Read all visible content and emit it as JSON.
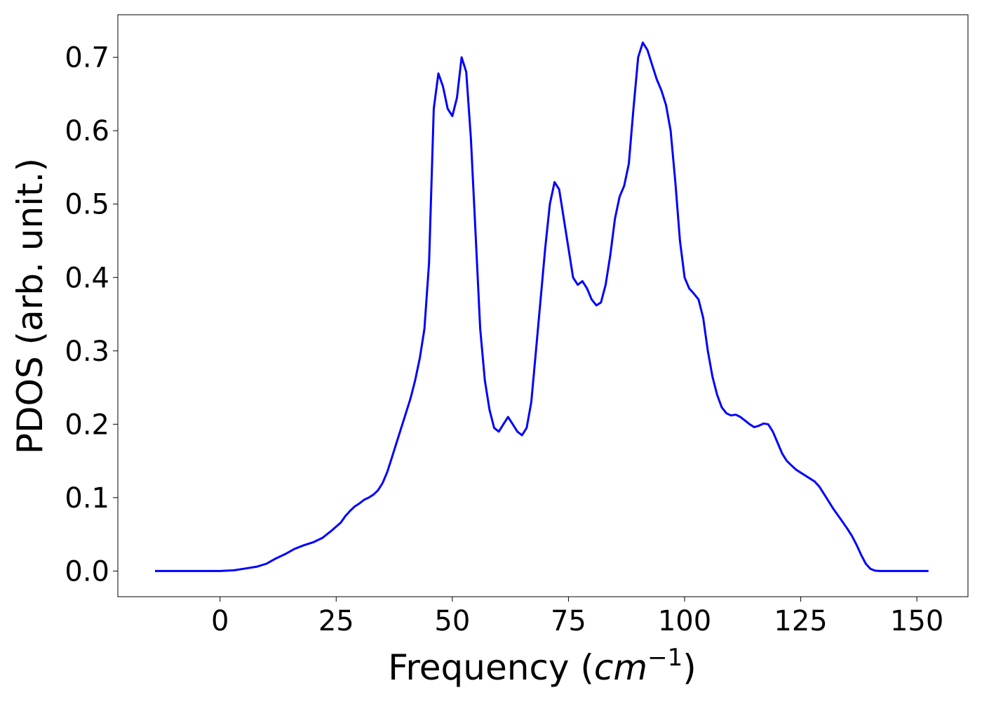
{
  "chart_data": {
    "type": "line",
    "title": "",
    "xlabel": "Frequency (",
    "xlabel_math": "cm",
    "xlabel_sup": "−1",
    "xlabel_close": ")",
    "ylabel": "PDOS (arb. unit.)",
    "xlim": [
      -22,
      161
    ],
    "ylim": [
      -0.035,
      0.758
    ],
    "grid": false,
    "legend": "none",
    "xticks": [
      0,
      25,
      50,
      75,
      100,
      125,
      150
    ],
    "xtick_labels": [
      "0",
      "25",
      "50",
      "75",
      "100",
      "125",
      "150"
    ],
    "yticks": [
      0.0,
      0.1,
      0.2,
      0.3,
      0.4,
      0.5,
      0.6,
      0.7
    ],
    "ytick_labels": [
      "0.0",
      "0.1",
      "0.2",
      "0.3",
      "0.4",
      "0.5",
      "0.6",
      "0.7"
    ],
    "series": [
      {
        "color": "#0000ff",
        "x": [
          -14,
          -5,
          0,
          3,
          5,
          8,
          10,
          12,
          14,
          16,
          18,
          20,
          22,
          24,
          26,
          27,
          28,
          29,
          30,
          31,
          32,
          33,
          34,
          35,
          36,
          37,
          38,
          39,
          40,
          41,
          42,
          43,
          44,
          45,
          46,
          47,
          48,
          49,
          50,
          51,
          52,
          53,
          54,
          55,
          56,
          57,
          58,
          59,
          60,
          61,
          62,
          63,
          64,
          65,
          66,
          67,
          68,
          69,
          70,
          71,
          72,
          73,
          74,
          75,
          76,
          77,
          78,
          79,
          80,
          81,
          82,
          83,
          84,
          85,
          86,
          87,
          88,
          89,
          90,
          91,
          92,
          93,
          94,
          95,
          96,
          97,
          98,
          99,
          100,
          101,
          102,
          103,
          104,
          105,
          106,
          107,
          108,
          109,
          110,
          111,
          112,
          113,
          114,
          115,
          116,
          117,
          118,
          119,
          120,
          121,
          122,
          123,
          124,
          125,
          126,
          127,
          128,
          129,
          130,
          131,
          132,
          133,
          134,
          135,
          136,
          137,
          138,
          139,
          140,
          141,
          142,
          145,
          150,
          152.5
        ],
        "y": [
          0.0,
          0.0,
          0.0,
          0.001,
          0.003,
          0.006,
          0.01,
          0.017,
          0.023,
          0.03,
          0.035,
          0.039,
          0.045,
          0.055,
          0.066,
          0.075,
          0.082,
          0.088,
          0.092,
          0.097,
          0.1,
          0.104,
          0.11,
          0.12,
          0.135,
          0.155,
          0.175,
          0.195,
          0.215,
          0.235,
          0.26,
          0.29,
          0.33,
          0.42,
          0.63,
          0.678,
          0.66,
          0.63,
          0.62,
          0.645,
          0.7,
          0.68,
          0.59,
          0.46,
          0.33,
          0.26,
          0.22,
          0.195,
          0.19,
          0.2,
          0.21,
          0.2,
          0.19,
          0.185,
          0.195,
          0.23,
          0.3,
          0.37,
          0.44,
          0.5,
          0.53,
          0.52,
          0.48,
          0.44,
          0.4,
          0.39,
          0.395,
          0.385,
          0.37,
          0.362,
          0.366,
          0.39,
          0.43,
          0.48,
          0.51,
          0.525,
          0.555,
          0.63,
          0.7,
          0.72,
          0.71,
          0.69,
          0.67,
          0.655,
          0.635,
          0.6,
          0.53,
          0.45,
          0.4,
          0.385,
          0.378,
          0.37,
          0.345,
          0.3,
          0.265,
          0.24,
          0.223,
          0.215,
          0.212,
          0.213,
          0.21,
          0.205,
          0.2,
          0.196,
          0.198,
          0.201,
          0.2,
          0.19,
          0.175,
          0.16,
          0.15,
          0.144,
          0.138,
          0.134,
          0.13,
          0.126,
          0.122,
          0.115,
          0.105,
          0.095,
          0.085,
          0.076,
          0.067,
          0.058,
          0.048,
          0.036,
          0.022,
          0.01,
          0.003,
          0.0005,
          0.0,
          0.0,
          0.0,
          0.0
        ]
      }
    ]
  }
}
